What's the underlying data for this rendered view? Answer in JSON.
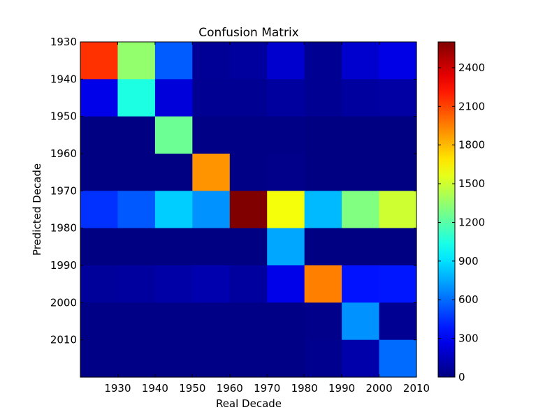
{
  "chart_data": {
    "type": "heatmap",
    "title": "Confusion Matrix",
    "xlabel": "Real Decade",
    "ylabel": "Predicted Decade",
    "x_tick_labels": [
      "1930",
      "1940",
      "1950",
      "1960",
      "1970",
      "1980",
      "1990",
      "2000",
      "2010"
    ],
    "y_tick_labels": [
      "1930",
      "1940",
      "1950",
      "1960",
      "1970",
      "1980",
      "1990",
      "2000",
      "2010"
    ],
    "colorbar": {
      "ticks": [
        "0",
        "300",
        "600",
        "900",
        "1200",
        "1500",
        "1800",
        "2100",
        "2400"
      ],
      "range": [
        0,
        2600
      ],
      "colormap": "jet"
    },
    "grid": false,
    "values": [
      [
        2150,
        1350,
        560,
        60,
        80,
        200,
        50,
        200,
        260
      ],
      [
        270,
        1050,
        230,
        50,
        50,
        80,
        50,
        80,
        90
      ],
      [
        10,
        10,
        1250,
        20,
        20,
        20,
        10,
        10,
        10
      ],
      [
        10,
        10,
        10,
        1900,
        20,
        30,
        10,
        10,
        10
      ],
      [
        450,
        550,
        850,
        700,
        2600,
        1600,
        800,
        1300,
        1500
      ],
      [
        10,
        10,
        10,
        10,
        10,
        750,
        10,
        10,
        10
      ],
      [
        70,
        80,
        100,
        120,
        80,
        270,
        1950,
        370,
        380
      ],
      [
        20,
        20,
        20,
        20,
        20,
        20,
        30,
        700,
        50
      ],
      [
        20,
        20,
        20,
        20,
        20,
        20,
        40,
        110,
        600
      ]
    ]
  }
}
